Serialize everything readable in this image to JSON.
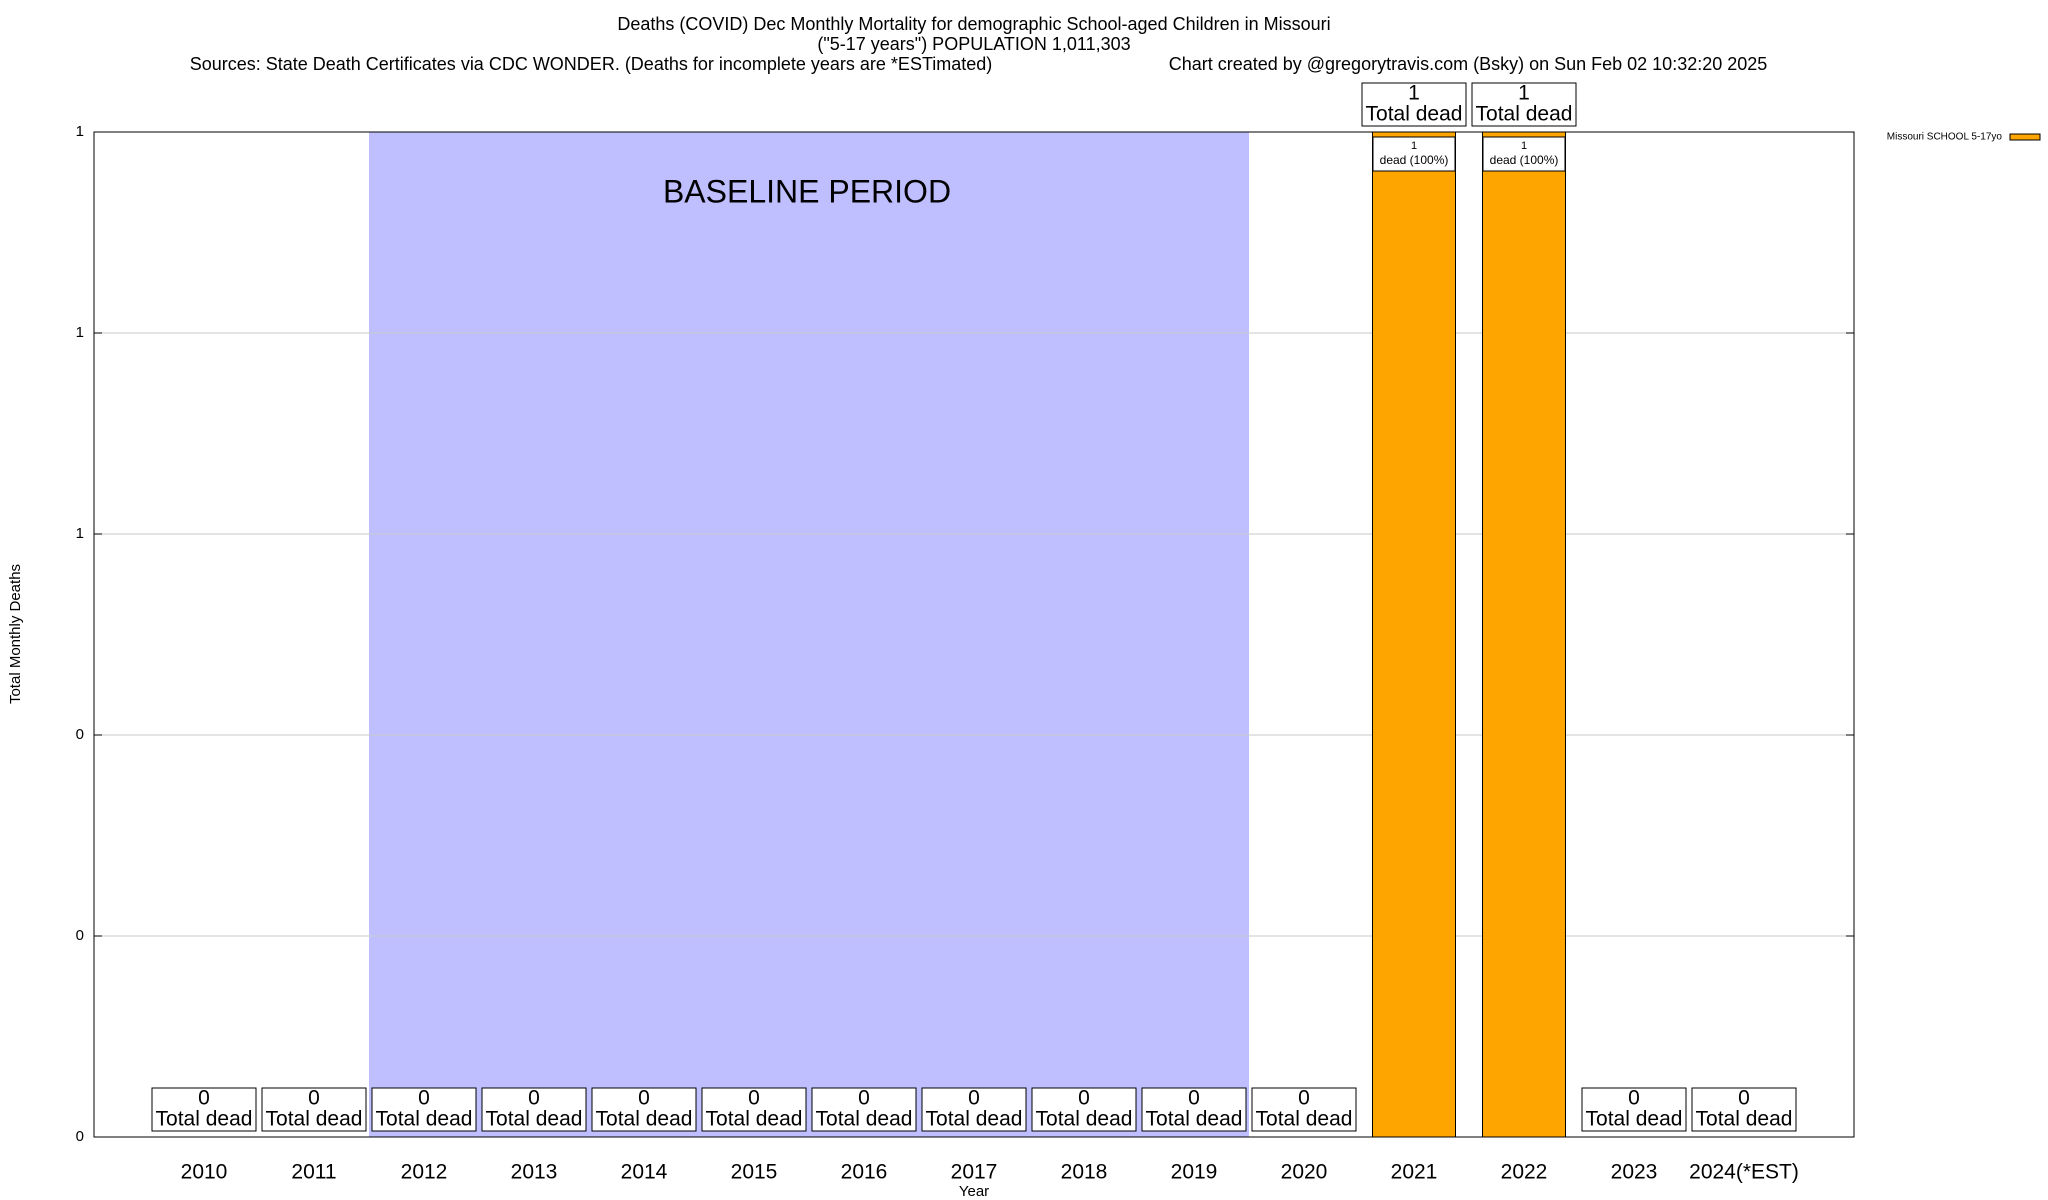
{
  "chart_data": {
    "type": "bar",
    "title": "Deaths (COVID) Dec Monthly Mortality for demographic School-aged Children in Missouri",
    "subtitle": "(\"5-17 years\") POPULATION 1,011,303",
    "source": "Sources: State Death Certificates via CDC WONDER. (Deaths for incomplete years are *ESTimated)",
    "credit": "Chart created by @gregorytravis.com (Bsky) on Sun Feb 02 10:32:20 2025",
    "xlabel": "Year",
    "ylabel": "Total Monthly Deaths",
    "categories": [
      "2010",
      "2011",
      "2012",
      "2013",
      "2014",
      "2015",
      "2016",
      "2017",
      "2018",
      "2019",
      "2020",
      "2021",
      "2022",
      "2023",
      "2024(*EST)"
    ],
    "series": [
      {
        "name": "Missouri SCHOOL 5-17yo",
        "color": "#ffa500",
        "values": [
          0,
          0,
          0,
          0,
          0,
          0,
          0,
          0,
          0,
          0,
          0,
          1,
          1,
          0,
          0
        ]
      }
    ],
    "total_label": "Total dead",
    "segment_label": "dead (100%)",
    "baseline": {
      "label": "BASELINE PERIOD",
      "start": "2012",
      "end": "2019",
      "color": "#bfbfff"
    },
    "ylim": [
      0,
      1
    ],
    "yticks": [
      0,
      {
        "value": 0.2,
        "label": "0"
      },
      {
        "value": 0.4,
        "label": "0"
      },
      {
        "value": 0.6,
        "label": "1"
      },
      {
        "value": 0.8,
        "label": "1"
      },
      1
    ],
    "grid": true,
    "legend": "top-right"
  }
}
